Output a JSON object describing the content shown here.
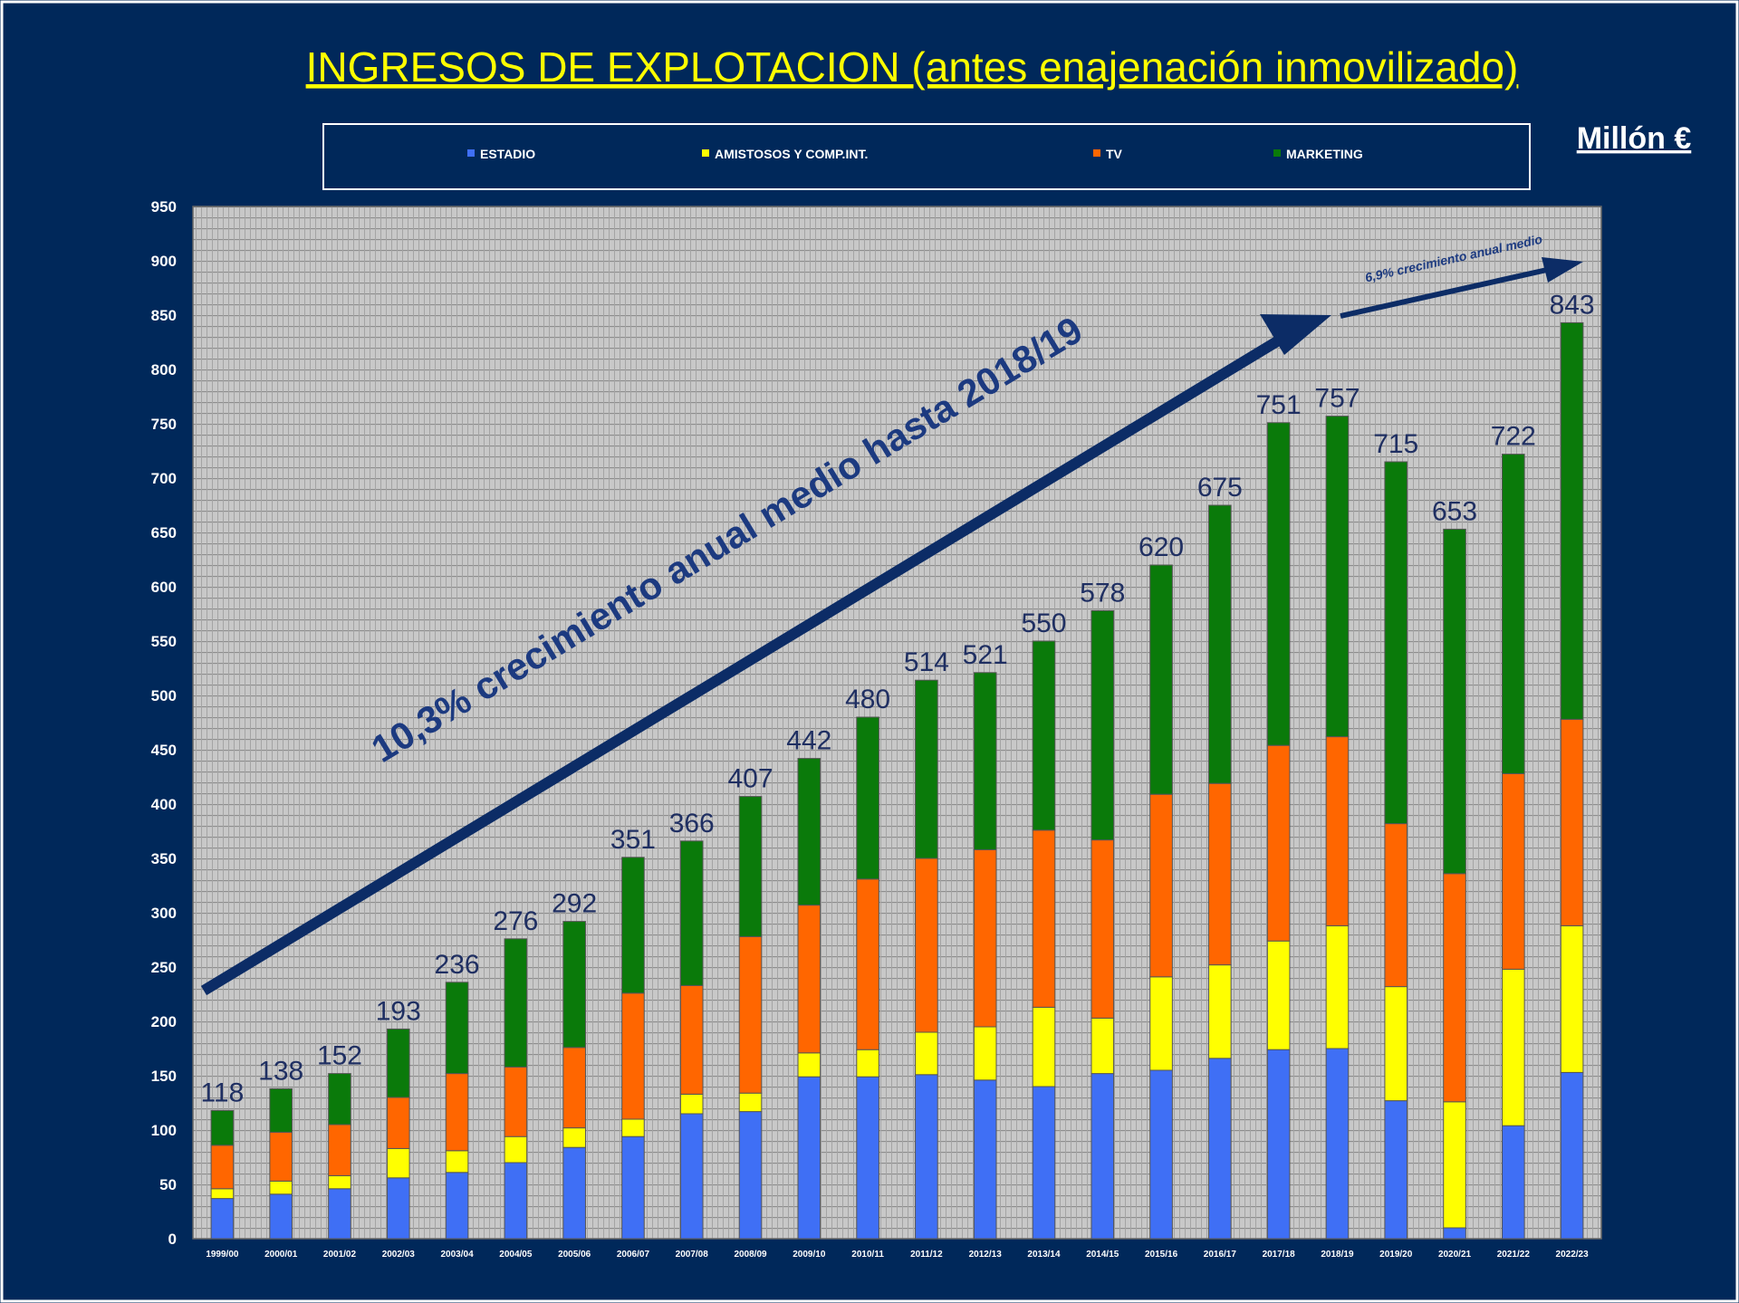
{
  "slide": {
    "title": "INGRESOS DE EXPLOTACION (antes enajenación inmovilizado)",
    "unit_label": "Millón €",
    "arrow_main_label": "10,3% crecimiento anual medio hasta 2018/19",
    "arrow_small_label": "6,9% crecimiento anual medio"
  },
  "chart_data": {
    "type": "bar",
    "stacked": true,
    "categories": [
      "1999/00",
      "2000/01",
      "2001/02",
      "2002/03",
      "2003/04",
      "2004/05",
      "2005/06",
      "2006/07",
      "2007/08",
      "2008/09",
      "2009/10",
      "2010/11",
      "2011/12",
      "2012/13",
      "2013/14",
      "2014/15",
      "2015/16",
      "2016/17",
      "2017/18",
      "2018/19",
      "2019/20",
      "2020/21",
      "2021/22",
      "2022/23"
    ],
    "totals": [
      118,
      138,
      152,
      193,
      236,
      276,
      292,
      351,
      366,
      407,
      442,
      480,
      514,
      521,
      550,
      578,
      620,
      675,
      751,
      757,
      715,
      653,
      722,
      843
    ],
    "series": [
      {
        "name": "ESTADIO",
        "color": "#3f6ff5",
        "values": [
          37,
          41,
          46,
          56,
          61,
          70,
          84,
          94,
          115,
          117,
          149,
          149,
          151,
          146,
          140,
          152,
          155,
          166,
          174,
          175,
          127,
          10,
          104,
          153
        ]
      },
      {
        "name": "AMISTOSOS Y COMP.INT.",
        "color": "#ffff00",
        "values": [
          9,
          12,
          12,
          27,
          20,
          24,
          18,
          16,
          18,
          17,
          22,
          25,
          39,
          49,
          73,
          51,
          86,
          86,
          100,
          113,
          105,
          116,
          144,
          135
        ]
      },
      {
        "name": "TV",
        "color": "#ff6600",
        "values": [
          40,
          45,
          47,
          47,
          71,
          64,
          74,
          116,
          100,
          144,
          136,
          157,
          160,
          163,
          163,
          164,
          168,
          167,
          180,
          174,
          150,
          210,
          180,
          190
        ]
      },
      {
        "name": "MARKETING",
        "color": "#0a7a0a",
        "values": [
          32,
          40,
          47,
          63,
          84,
          118,
          116,
          125,
          133,
          129,
          135,
          149,
          164,
          163,
          174,
          211,
          211,
          256,
          297,
          295,
          333,
          317,
          294,
          365
        ]
      }
    ],
    "ylim": [
      0,
      950
    ],
    "yticks": [
      0,
      50,
      100,
      150,
      200,
      250,
      300,
      350,
      400,
      450,
      500,
      550,
      600,
      650,
      700,
      750,
      800,
      850,
      900,
      950
    ],
    "grid": true,
    "legend": "top",
    "colors": {
      "background": "#00285a",
      "plot_bg": "#c6c6c6",
      "title": "#ffff00",
      "axis_text": "#ffffff",
      "total_label": "#1f2f62",
      "arrow": "#0c2c66"
    }
  }
}
